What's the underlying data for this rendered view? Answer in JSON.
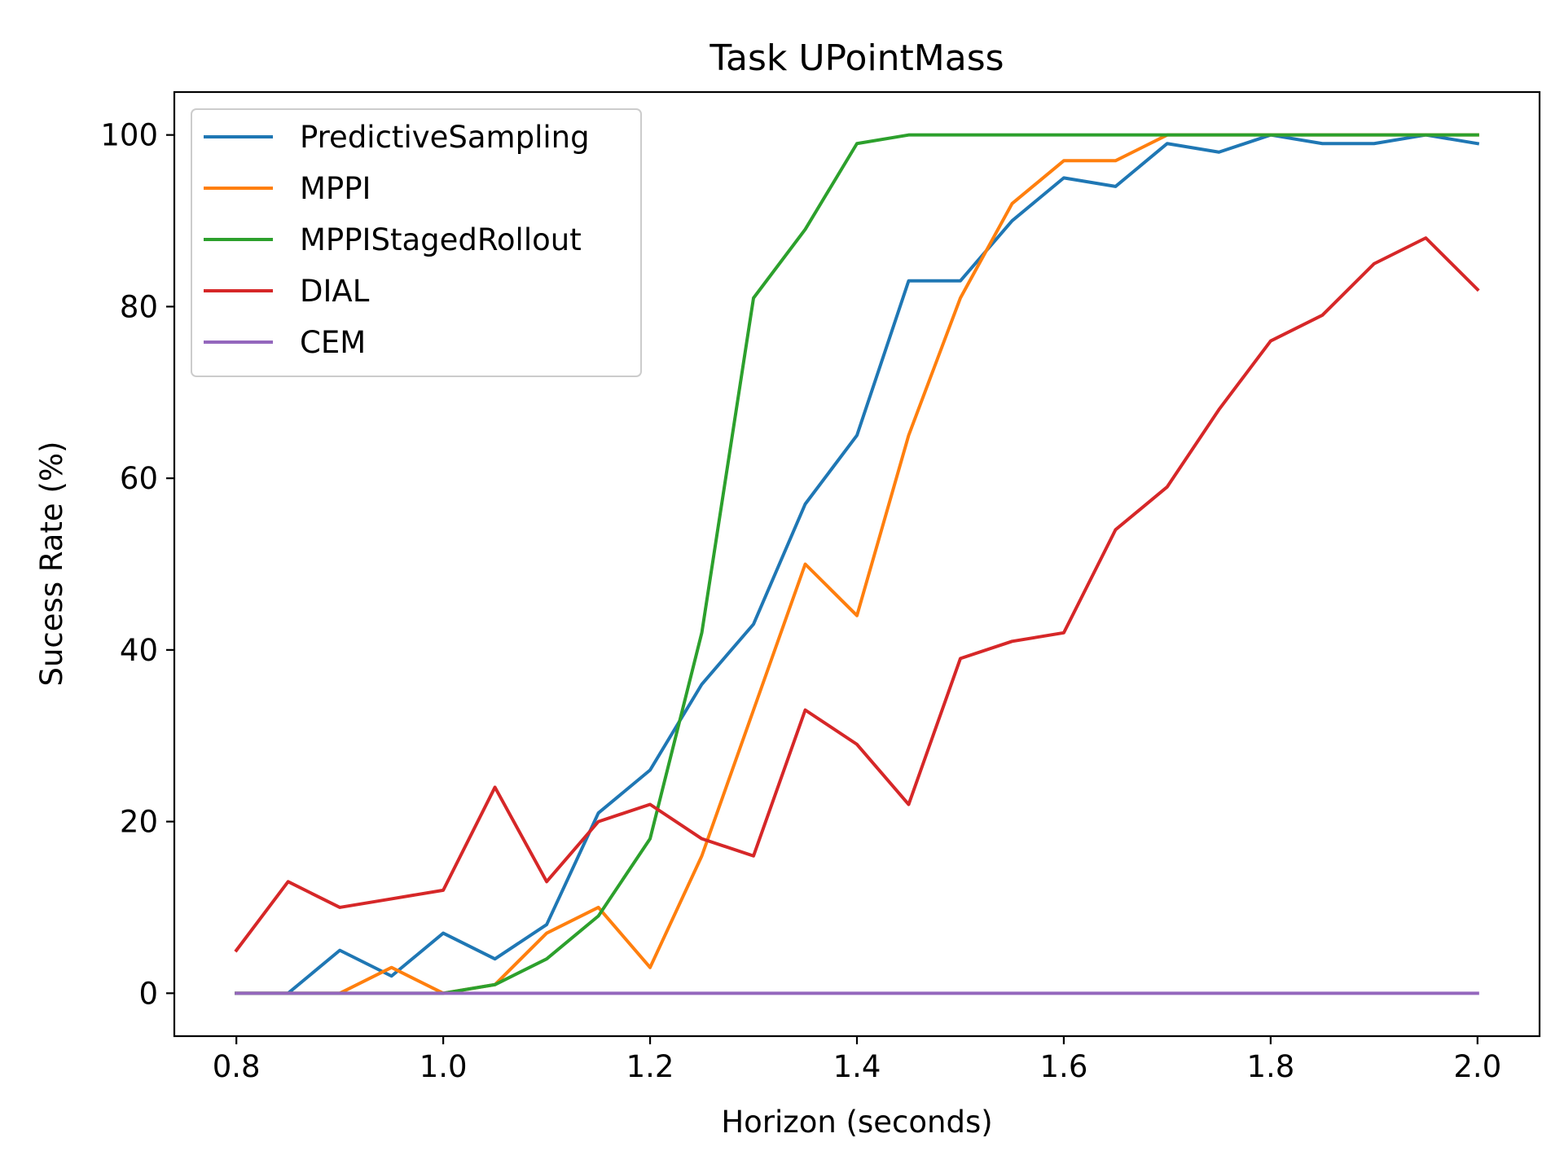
{
  "chart_data": {
    "type": "line",
    "title": "Task UPointMass",
    "xlabel": "Horizon (seconds)",
    "ylabel": "Sucess Rate (%)",
    "xlim": [
      0.74,
      2.06
    ],
    "ylim": [
      -5,
      105
    ],
    "xticks": [
      0.8,
      1.0,
      1.2,
      1.4,
      1.6,
      1.8,
      2.0
    ],
    "xtick_labels": [
      "0.8",
      "1.0",
      "1.2",
      "1.4",
      "1.6",
      "1.8",
      "2.0"
    ],
    "yticks": [
      0,
      20,
      40,
      60,
      80,
      100
    ],
    "ytick_labels": [
      "0",
      "20",
      "40",
      "60",
      "80",
      "100"
    ],
    "grid": false,
    "legend_position": "upper-left",
    "x": [
      0.8,
      0.85,
      0.9,
      0.95,
      1.0,
      1.05,
      1.1,
      1.15,
      1.2,
      1.25,
      1.3,
      1.35,
      1.4,
      1.45,
      1.5,
      1.55,
      1.6,
      1.65,
      1.7,
      1.75,
      1.8,
      1.85,
      1.9,
      1.95,
      2.0
    ],
    "series": [
      {
        "name": "PredictiveSampling",
        "color": "#1f77b4",
        "values": [
          0,
          0,
          5,
          2,
          7,
          4,
          8,
          21,
          26,
          36,
          43,
          57,
          65,
          83,
          83,
          90,
          95,
          94,
          99,
          98,
          100,
          99,
          99,
          100,
          99
        ]
      },
      {
        "name": "MPPI",
        "color": "#ff7f0e",
        "values": [
          0,
          0,
          0,
          3,
          0,
          1,
          7,
          10,
          3,
          16,
          33,
          50,
          44,
          65,
          81,
          92,
          97,
          97,
          100,
          100,
          100,
          100,
          100,
          100,
          100
        ]
      },
      {
        "name": "MPPIStagedRollout",
        "color": "#2ca02c",
        "values": [
          0,
          0,
          0,
          0,
          0,
          1,
          4,
          9,
          18,
          42,
          81,
          89,
          99,
          100,
          100,
          100,
          100,
          100,
          100,
          100,
          100,
          100,
          100,
          100,
          100
        ]
      },
      {
        "name": "DIAL",
        "color": "#d62728",
        "values": [
          5,
          13,
          10,
          11,
          12,
          24,
          13,
          20,
          22,
          18,
          16,
          33,
          29,
          22,
          39,
          41,
          42,
          54,
          59,
          68,
          76,
          79,
          85,
          88,
          82
        ]
      },
      {
        "name": "CEM",
        "color": "#9467bd",
        "values": [
          0,
          0,
          0,
          0,
          0,
          0,
          0,
          0,
          0,
          0,
          0,
          0,
          0,
          0,
          0,
          0,
          0,
          0,
          0,
          0,
          0,
          0,
          0,
          0,
          0
        ]
      }
    ]
  }
}
